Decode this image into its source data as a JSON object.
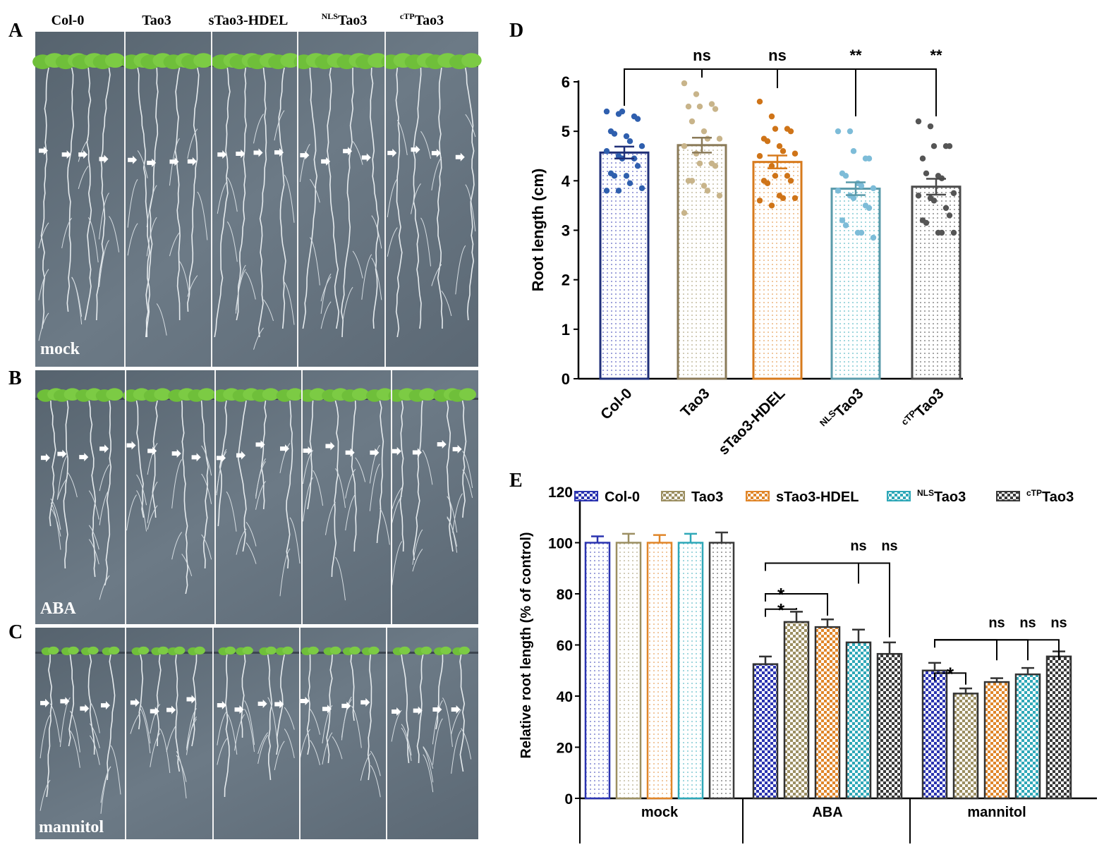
{
  "figure": {
    "panel_letters": [
      "A",
      "B",
      "C",
      "D",
      "E"
    ]
  },
  "photos": {
    "columns": [
      {
        "sup": "",
        "name": "Col-0"
      },
      {
        "sup": "",
        "name": "Tao3"
      },
      {
        "sup": "",
        "name": "sTao3-HDEL"
      },
      {
        "sup": "NLS",
        "name": "Tao3"
      },
      {
        "sup": "cTP",
        "name": "Tao3"
      }
    ],
    "conditions": [
      "mock",
      "ABA",
      "mannitol"
    ]
  },
  "chart_data": [
    {
      "panel": "D",
      "type": "bar",
      "categories": [
        {
          "sup": "",
          "name": "Col-0"
        },
        {
          "sup": "",
          "name": "Tao3"
        },
        {
          "sup": "",
          "name": "sTao3-HDEL"
        },
        {
          "sup": "NLS",
          "name": "Tao3"
        },
        {
          "sup": "cTP",
          "name": "Tao3"
        }
      ],
      "values": [
        4.57,
        4.72,
        4.38,
        3.84,
        3.88
      ],
      "sem": [
        0.12,
        0.15,
        0.13,
        0.13,
        0.16
      ],
      "points": [
        [
          5.4,
          5.35,
          5.4,
          5.3,
          5.25,
          5.0,
          4.95,
          4.9,
          4.8,
          4.7,
          4.6,
          4.5,
          4.45,
          4.45,
          4.3,
          4.15,
          4.1,
          4.1,
          3.95,
          3.85,
          3.8,
          3.8
        ],
        [
          5.97,
          5.75,
          5.5,
          5.55,
          5.45,
          5.5,
          5.2,
          5.0,
          4.85,
          4.85,
          4.7,
          4.55,
          4.35,
          4.35,
          4.3,
          4.0,
          4.0,
          3.9,
          3.8,
          3.7,
          3.35
        ],
        [
          5.6,
          5.3,
          5.05,
          5.05,
          5.0,
          4.85,
          4.8,
          4.7,
          4.6,
          4.55,
          4.5,
          4.3,
          4.1,
          4.1,
          4.0,
          4.0,
          3.95,
          3.7,
          3.65,
          3.65,
          3.6,
          3.5
        ],
        [
          5.0,
          5.0,
          4.6,
          4.45,
          4.45,
          4.15,
          4.1,
          3.95,
          3.9,
          3.85,
          3.8,
          3.7,
          3.65,
          3.5,
          3.45,
          3.2,
          3.1,
          2.95,
          2.95,
          2.85
        ],
        [
          5.2,
          5.1,
          4.7,
          4.7,
          4.7,
          4.45,
          4.15,
          4.1,
          4.05,
          3.75,
          3.7,
          3.65,
          3.6,
          3.45,
          3.3,
          3.2,
          3.15,
          2.95,
          2.95,
          2.95
        ]
      ],
      "significance": [
        "",
        "ns",
        "ns",
        "**",
        "**"
      ],
      "xlabel": "",
      "ylabel": "Root length (cm)",
      "ylim": [
        0,
        6
      ],
      "yticks": [
        0,
        1,
        2,
        3,
        4,
        5,
        6
      ],
      "grid": false,
      "colors": [
        "#1f2f78",
        "#8a7a58",
        "#d77a1c",
        "#5a9aaa",
        "#4a4a4a"
      ],
      "point_colors": [
        "#2f5fae",
        "#c8b48a",
        "#cf7418",
        "#7dbcd8",
        "#555555"
      ]
    },
    {
      "panel": "E",
      "type": "bar",
      "groups": [
        "mock",
        "ABA",
        "mannitol"
      ],
      "series": [
        {
          "sup": "",
          "name": "Col-0",
          "values": [
            100,
            52.5,
            50
          ],
          "sem": [
            2.5,
            3,
            3
          ],
          "color": "#2b34b0"
        },
        {
          "sup": "",
          "name": "Tao3",
          "values": [
            100,
            69,
            41
          ],
          "sem": [
            3.5,
            4,
            2
          ],
          "color": "#9c8f62"
        },
        {
          "sup": "",
          "name": "sTao3-HDEL",
          "values": [
            100,
            67,
            45.5
          ],
          "sem": [
            3,
            3,
            1.5
          ],
          "color": "#e0862a"
        },
        {
          "sup": "NLS",
          "name": "Tao3",
          "values": [
            100,
            61,
            48.5
          ],
          "sem": [
            3.5,
            5,
            2.5
          ],
          "color": "#2fa8b8"
        },
        {
          "sup": "cTP",
          "name": "Tao3",
          "values": [
            100,
            56.5,
            55.5
          ],
          "sem": [
            4,
            4.5,
            2
          ],
          "color": "#3a3a3a"
        }
      ],
      "significance": [
        {
          "group": 1,
          "from": 0,
          "to": 1,
          "label": "*"
        },
        {
          "group": 1,
          "from": 0,
          "to": 2,
          "label": "*"
        },
        {
          "group": 1,
          "from": 0,
          "to": 3,
          "label": "ns"
        },
        {
          "group": 1,
          "from": 0,
          "to": 4,
          "label": "ns"
        },
        {
          "group": 2,
          "from": 0,
          "to": 1,
          "label": "*"
        },
        {
          "group": 2,
          "from": 0,
          "to": 2,
          "label": "ns"
        },
        {
          "group": 2,
          "from": 0,
          "to": 3,
          "label": "ns"
        },
        {
          "group": 2,
          "from": 0,
          "to": 4,
          "label": "ns"
        }
      ],
      "xlabel": "",
      "ylabel": "Relative root length (% of control)",
      "ylim": [
        0,
        120
      ],
      "yticks": [
        0,
        20,
        40,
        60,
        80,
        100,
        120
      ],
      "grid": false,
      "legend": "top"
    }
  ]
}
